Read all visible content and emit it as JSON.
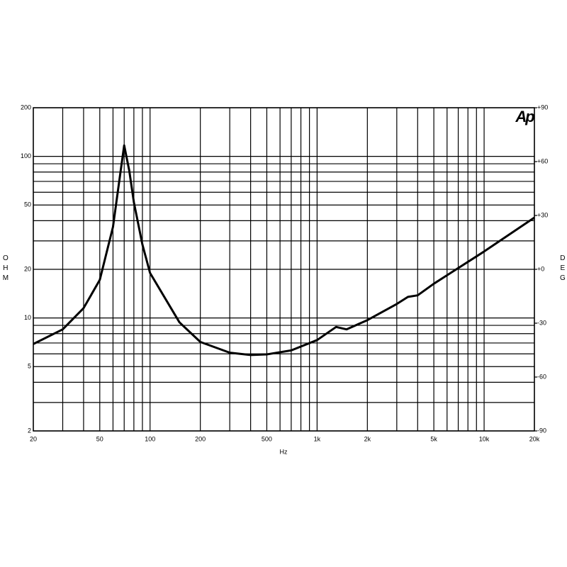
{
  "chart_data": {
    "type": "line",
    "x_label": "Hz",
    "y_label": "OHM",
    "y2_label": "DEG",
    "logo": "Ap",
    "log_x": true,
    "log_y": true,
    "grid": true,
    "color": "#000000",
    "xlim": [
      20,
      20000
    ],
    "ylim": [
      2,
      200
    ],
    "y2lim": [
      -90,
      90
    ],
    "xticks": [
      20,
      50,
      100,
      200,
      500,
      {
        "value": 1000,
        "label": "1k"
      },
      {
        "value": 2000,
        "label": "2k"
      },
      {
        "value": 5000,
        "label": "5k"
      },
      {
        "value": 10000,
        "label": "10k"
      },
      {
        "value": 20000,
        "label": "20k"
      }
    ],
    "xgrid_minor": [
      30,
      40,
      60,
      70,
      80,
      90,
      300,
      400,
      600,
      700,
      800,
      900,
      3000,
      4000,
      6000,
      7000,
      8000,
      9000
    ],
    "yticks": [
      2,
      5,
      10,
      20,
      50,
      100,
      200
    ],
    "ygrid_minor": [
      3,
      4,
      6,
      7,
      8,
      9,
      30,
      40,
      60,
      70,
      80,
      90
    ],
    "y2ticks": [
      {
        "value": 90,
        "label": "+90"
      },
      {
        "value": 60,
        "label": "+60"
      },
      {
        "value": 30,
        "label": "+30"
      },
      {
        "value": 0,
        "label": "+0"
      },
      -30,
      -60,
      -90
    ],
    "x": [
      20,
      30,
      40,
      50,
      60,
      65,
      70,
      75,
      80,
      90,
      100,
      150,
      200,
      300,
      400,
      500,
      700,
      1000,
      1300,
      1500,
      2000,
      3000,
      3500,
      4000,
      5000,
      10000,
      20000
    ],
    "values": [
      6.9,
      8.5,
      11.5,
      17.2,
      36.6,
      67,
      117,
      82,
      52,
      28.5,
      19,
      9.4,
      7.1,
      6.1,
      5.9,
      5.95,
      6.3,
      7.3,
      8.8,
      8.5,
      9.7,
      12.2,
      13.5,
      13.8,
      16.3,
      25.8,
      41.8
    ]
  }
}
